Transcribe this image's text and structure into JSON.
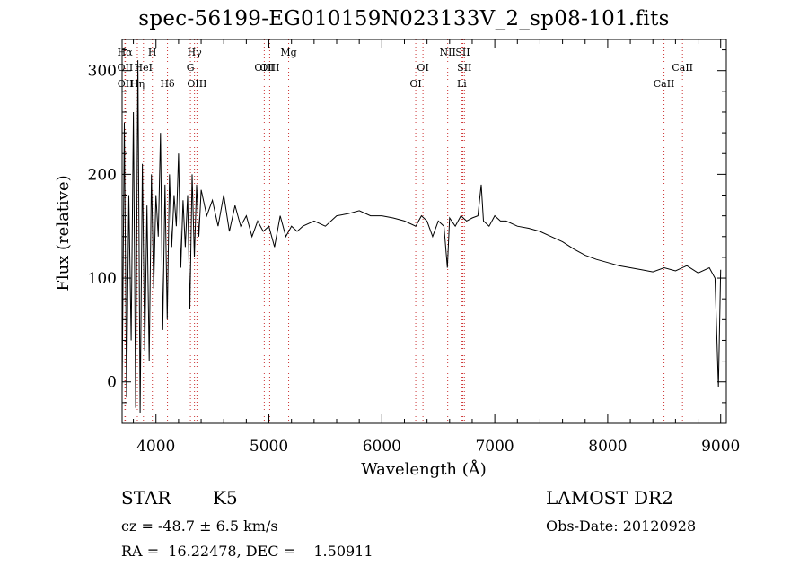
{
  "title": "spec-56199-EG010159N023133V_2_sp08-101.fits",
  "footer": {
    "classification": "STAR",
    "subclass": "K5",
    "redshift": "cz = -48.7 ± 6.5 km/s",
    "coords": "RA =  16.22478, DEC =    1.50911",
    "survey": "LAMOST DR2",
    "obs_date": "Obs-Date: 20120928"
  },
  "chart_data": {
    "type": "line",
    "xlabel": "Wavelength (Å)",
    "ylabel": "Flux (relative)",
    "xlim": [
      3700,
      9050
    ],
    "ylim": [
      -40,
      330
    ],
    "xticks": [
      4000,
      5000,
      6000,
      7000,
      8000,
      9000
    ],
    "yticks": [
      0,
      100,
      200,
      300
    ],
    "grid": false,
    "line_color": "#000000",
    "marker_color": "#cc3333",
    "spectrum": {
      "x": [
        3700,
        3720,
        3740,
        3760,
        3780,
        3800,
        3820,
        3840,
        3860,
        3880,
        3900,
        3920,
        3940,
        3960,
        3980,
        4000,
        4020,
        4040,
        4060,
        4080,
        4100,
        4120,
        4140,
        4160,
        4180,
        4200,
        4220,
        4240,
        4260,
        4280,
        4300,
        4320,
        4340,
        4360,
        4380,
        4400,
        4450,
        4500,
        4550,
        4600,
        4650,
        4700,
        4750,
        4800,
        4850,
        4900,
        4950,
        5000,
        5050,
        5100,
        5150,
        5200,
        5250,
        5300,
        5400,
        5500,
        5600,
        5700,
        5800,
        5900,
        6000,
        6100,
        6200,
        6300,
        6350,
        6400,
        6450,
        6500,
        6550,
        6580,
        6600,
        6650,
        6700,
        6750,
        6800,
        6850,
        6880,
        6900,
        6950,
        7000,
        7050,
        7100,
        7200,
        7300,
        7400,
        7500,
        7600,
        7700,
        7800,
        7900,
        8000,
        8100,
        8200,
        8300,
        8400,
        8500,
        8600,
        8700,
        8800,
        8900,
        8950,
        8980,
        9000
      ],
      "y": [
        -10,
        250,
        -15,
        180,
        40,
        260,
        -25,
        310,
        -30,
        210,
        30,
        170,
        20,
        200,
        90,
        180,
        140,
        240,
        50,
        190,
        60,
        200,
        130,
        180,
        150,
        220,
        110,
        175,
        130,
        180,
        70,
        200,
        120,
        190,
        140,
        185,
        160,
        175,
        150,
        180,
        145,
        170,
        150,
        160,
        140,
        155,
        145,
        150,
        130,
        160,
        140,
        150,
        145,
        150,
        155,
        150,
        160,
        162,
        165,
        160,
        160,
        158,
        155,
        150,
        160,
        155,
        140,
        155,
        150,
        110,
        158,
        150,
        160,
        155,
        158,
        160,
        190,
        155,
        150,
        160,
        155,
        155,
        150,
        148,
        145,
        140,
        135,
        128,
        122,
        118,
        115,
        112,
        110,
        108,
        106,
        110,
        107,
        112,
        105,
        110,
        100,
        -5,
        108
      ]
    },
    "lines": [
      {
        "label": "Hα",
        "x": 3725,
        "row": 1
      },
      {
        "label": "OII",
        "x": 3727,
        "row": 2
      },
      {
        "label": "OII",
        "x": 3729,
        "row": 3
      },
      {
        "label": "H",
        "x": 3968,
        "row": 1
      },
      {
        "label": "Hη",
        "x": 3835,
        "row": 3
      },
      {
        "label": "HeI",
        "x": 3889,
        "row": 2
      },
      {
        "label": "Hδ",
        "x": 4102,
        "row": 3
      },
      {
        "label": "Hγ",
        "x": 4341,
        "row": 1
      },
      {
        "label": "G",
        "x": 4305,
        "row": 2
      },
      {
        "label": "OIII",
        "x": 4363,
        "row": 3
      },
      {
        "label": "OIII",
        "x": 4959,
        "row": 2
      },
      {
        "label": "OIII",
        "x": 5007,
        "row": 2
      },
      {
        "label": "Mg",
        "x": 5175,
        "row": 1
      },
      {
        "label": "OI",
        "x": 6300,
        "row": 3
      },
      {
        "label": "OI",
        "x": 6364,
        "row": 2
      },
      {
        "label": "NII",
        "x": 6583,
        "row": 1
      },
      {
        "label": "SII",
        "x": 6717,
        "row": 1
      },
      {
        "label": "SII",
        "x": 6731,
        "row": 2
      },
      {
        "label": "Li",
        "x": 6708,
        "row": 3
      },
      {
        "label": "CaII",
        "x": 8498,
        "row": 3
      },
      {
        "label": "CaII",
        "x": 8662,
        "row": 2
      }
    ]
  }
}
